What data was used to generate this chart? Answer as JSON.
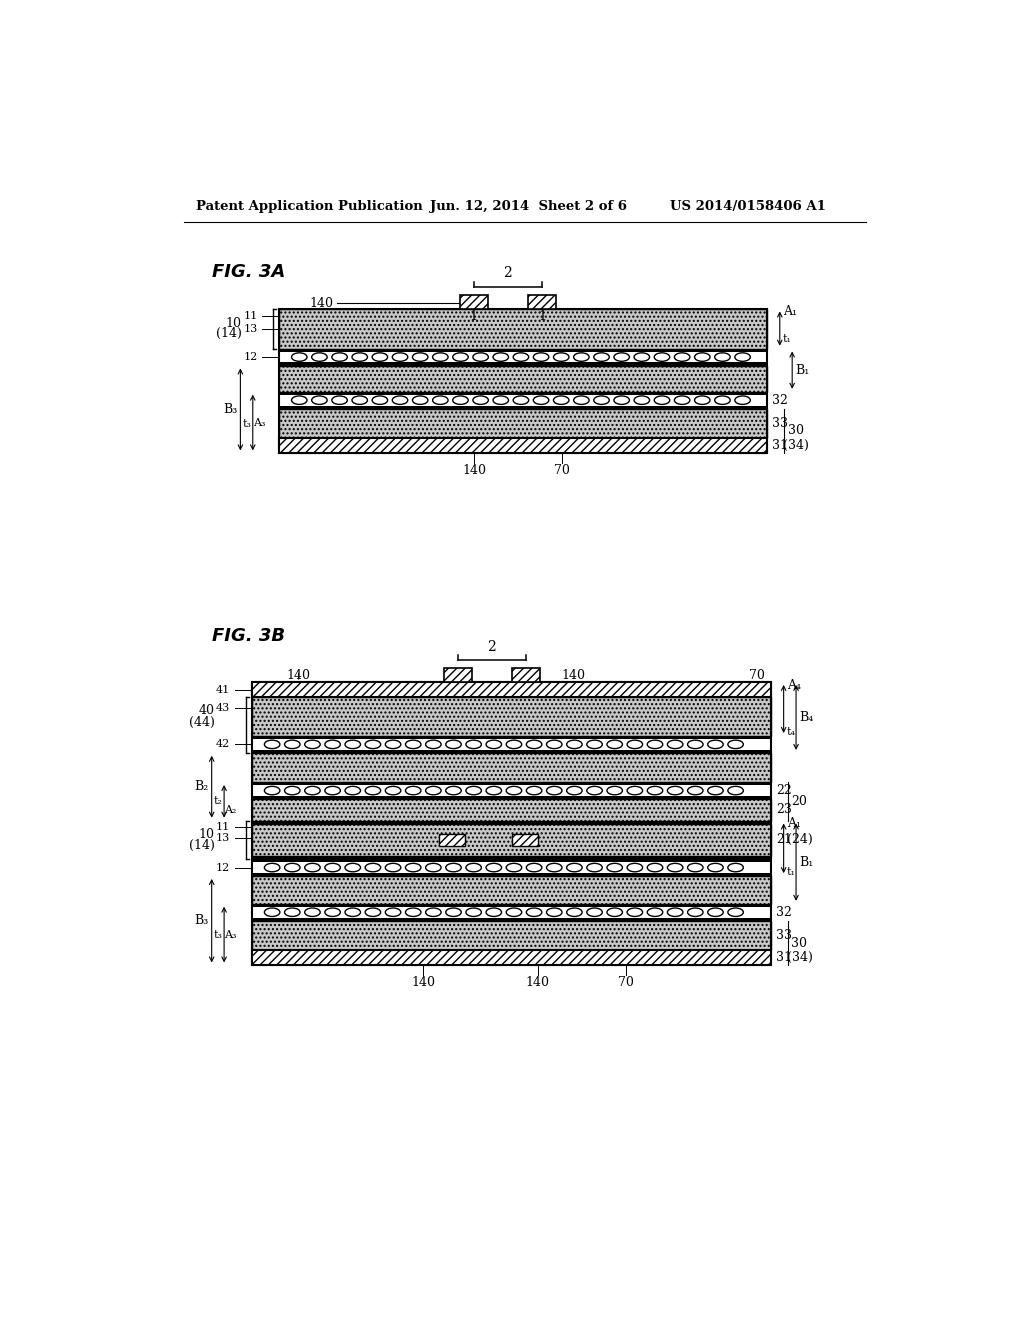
{
  "header_left": "Patent Application Publication",
  "header_mid": "Jun. 12, 2014  Sheet 2 of 6",
  "header_right": "US 2014/0158406 A1",
  "fig3a_title": "FIG. 3A",
  "fig3b_title": "FIG. 3B",
  "bg_color": "#ffffff"
}
